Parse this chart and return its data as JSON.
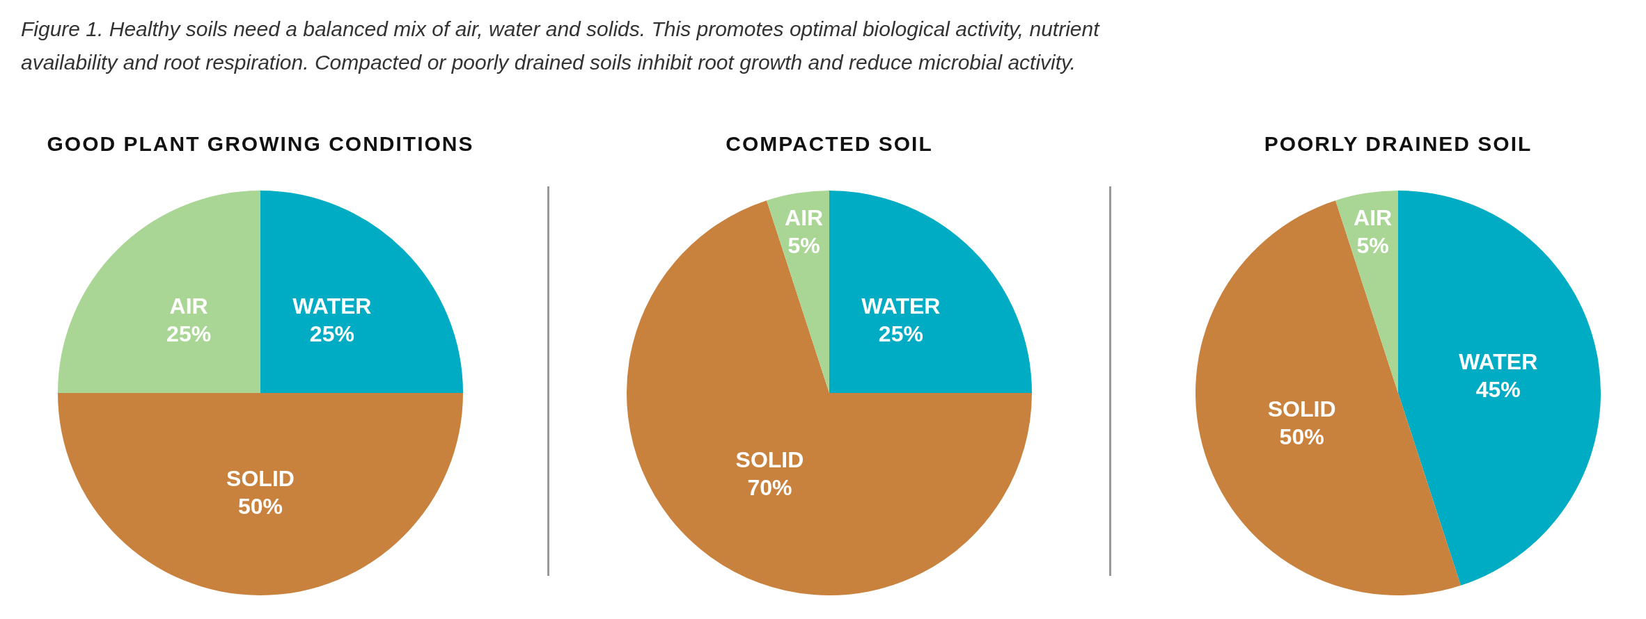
{
  "chart_data": [
    {
      "type": "pie",
      "title": "GOOD PLANT GROWING CONDITIONS",
      "annotations": [
        "Figure 1. Healthy soils need a balanced mix of air, water and solids. This promotes optimal biological activity, nutrient availability and root respiration. Compacted or poorly drained soils inhibit root growth and reduce microbial activity."
      ],
      "categories": [
        "WATER",
        "SOLID",
        "AIR"
      ],
      "values": [
        25,
        50,
        25
      ],
      "value_labels": [
        "25%",
        "50%",
        "25%"
      ],
      "colors": [
        "#00abc4",
        "#c8823e",
        "#a9d694"
      ],
      "legend": false
    },
    {
      "type": "pie",
      "title": "COMPACTED SOIL",
      "categories": [
        "WATER",
        "SOLID",
        "AIR"
      ],
      "values": [
        25,
        70,
        5
      ],
      "value_labels": [
        "25%",
        "70%",
        "5%"
      ],
      "colors": [
        "#00abc4",
        "#c8823e",
        "#a9d694"
      ],
      "legend": false
    },
    {
      "type": "pie",
      "title": "POORLY DRAINED SOIL",
      "categories": [
        "WATER",
        "SOLID",
        "AIR"
      ],
      "values": [
        45,
        50,
        5
      ],
      "value_labels": [
        "45%",
        "50%",
        "5%"
      ],
      "colors": [
        "#00abc4",
        "#c8823e",
        "#a9d694"
      ],
      "legend": false
    }
  ]
}
